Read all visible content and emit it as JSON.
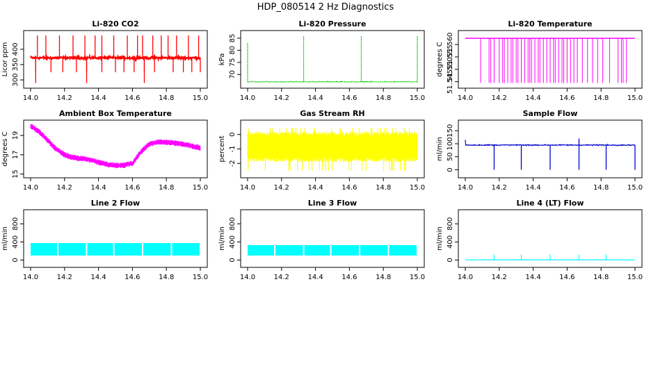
{
  "figure_title": "HDP_080514  2 Hz Diagnostics",
  "chart_data": [
    {
      "type": "line",
      "title": "Li-820 CO2",
      "ylabel": "Licor ppm",
      "color": "#ff0000",
      "xlim": [
        14.0,
        15.0
      ],
      "ylim": [
        282,
        452
      ],
      "x_ticks": [
        "14.0",
        "14.2",
        "14.4",
        "14.6",
        "14.8",
        "15.0"
      ],
      "y_ticks": [
        "300",
        "350",
        "400"
      ],
      "y_tick_values": [
        300,
        350,
        400
      ],
      "baseline": 372,
      "noise": 4,
      "spikes_up": [
        14.04,
        14.09,
        14.17,
        14.25,
        14.32,
        14.38,
        14.42,
        14.49,
        14.57,
        14.63,
        14.66,
        14.72,
        14.77,
        14.81,
        14.86,
        14.93,
        14.99
      ],
      "spike_up_value": 445,
      "spikes_down": [
        14.03,
        14.12,
        14.19,
        14.27,
        14.33,
        14.42,
        14.5,
        14.55,
        14.61,
        14.67,
        14.73,
        14.84,
        14.9,
        14.95,
        15.0
      ],
      "spike_down_value": 325,
      "deep_spikes": [
        14.03,
        14.33,
        14.67
      ],
      "deep_spike_value": 290
    },
    {
      "type": "line",
      "title": "Li-820 Pressure",
      "ylabel": "kPa",
      "color": "#00cc00",
      "xlim": [
        14.0,
        15.0
      ],
      "ylim": [
        65.5,
        87
      ],
      "x_ticks": [
        "14.0",
        "14.2",
        "14.4",
        "14.6",
        "14.8",
        "15.0"
      ],
      "y_ticks": [
        "70",
        "75",
        "80",
        "85"
      ],
      "y_tick_values": [
        70,
        75,
        80,
        85
      ],
      "baseline": 67.0,
      "noise": 0.15,
      "spikes_up": [
        14.0,
        14.33,
        14.67,
        15.0
      ],
      "spike_up_value": 86,
      "spike_first_value": 83
    },
    {
      "type": "line",
      "title": "Li-820 Temperature",
      "ylabel": "degrees C",
      "color": "#ff00ff",
      "xlim": [
        14.0,
        15.0
      ],
      "ylim": [
        51.5435,
        51.5645
      ],
      "x_ticks": [
        "14.0",
        "14.2",
        "14.4",
        "14.6",
        "14.8",
        "15.0"
      ],
      "y_ticks": [
        "51.545",
        "51.550",
        "51.555",
        "51.560"
      ],
      "y_tick_values": [
        51.545,
        51.55,
        51.555,
        51.56
      ],
      "high_value": 51.5625,
      "low_value": 51.5445,
      "drops": [
        14.09,
        14.14,
        14.15,
        14.17,
        14.2,
        14.22,
        14.23,
        14.25,
        14.27,
        14.28,
        14.3,
        14.31,
        14.33,
        14.35,
        14.37,
        14.38,
        14.39,
        14.41,
        14.43,
        14.44,
        14.46,
        14.48,
        14.5,
        14.52,
        14.53,
        14.55,
        14.57,
        14.58,
        14.6,
        14.62,
        14.64,
        14.66,
        14.69,
        14.72,
        14.75,
        14.78,
        14.81,
        14.85,
        14.9,
        14.92,
        14.93,
        14.95
      ]
    },
    {
      "type": "line",
      "title": "Ambient Box Temperature",
      "ylabel": "degrees C",
      "color": "#ff00ff",
      "xlim": [
        14.0,
        15.0
      ],
      "ylim": [
        14.9,
        20.3
      ],
      "x_ticks": [
        "14.0",
        "14.2",
        "14.4",
        "14.6",
        "14.8",
        "15.0"
      ],
      "y_ticks": [
        "15",
        "17",
        "19"
      ],
      "y_tick_values": [
        15,
        17,
        19
      ],
      "trend_x": [
        14.0,
        14.05,
        14.1,
        14.15,
        14.2,
        14.25,
        14.3,
        14.35,
        14.4,
        14.45,
        14.5,
        14.55,
        14.6,
        14.65,
        14.7,
        14.75,
        14.8,
        14.85,
        14.9,
        14.95,
        15.0
      ],
      "trend_y": [
        20.0,
        19.4,
        18.5,
        17.6,
        17.0,
        16.7,
        16.6,
        16.5,
        16.2,
        16.0,
        15.9,
        15.9,
        16.1,
        17.3,
        18.1,
        18.3,
        18.3,
        18.2,
        18.1,
        17.9,
        17.7
      ],
      "noise": 0.3
    },
    {
      "type": "line",
      "title": "Gas Stream RH",
      "ylabel": "percent",
      "color": "#ffff00",
      "xlim": [
        14.0,
        15.0
      ],
      "ylim": [
        -2.8,
        0.8
      ],
      "x_ticks": [
        "14.0",
        "14.2",
        "14.4",
        "14.6",
        "14.8",
        "15.0"
      ],
      "y_ticks": [
        "-2",
        "-1",
        "0"
      ],
      "y_tick_values": [
        -2,
        -1,
        0
      ],
      "center": -0.9,
      "band_low": -1.9,
      "band_high": 0.2,
      "extreme_low": -2.5,
      "extreme_high": 0.45
    },
    {
      "type": "line",
      "title": "Sample Flow",
      "ylabel": "ml/min",
      "color": "#0000cc",
      "xlim": [
        14.0,
        15.0
      ],
      "ylim": [
        -20,
        180
      ],
      "x_ticks": [
        "14.0",
        "14.2",
        "14.4",
        "14.6",
        "14.8",
        "15.0"
      ],
      "y_ticks": [
        "0",
        "50",
        "100",
        "150"
      ],
      "y_tick_values": [
        0,
        50,
        100,
        150
      ],
      "baseline": 95,
      "noise": 2,
      "dips": [
        14.17,
        14.33,
        14.5,
        14.67,
        14.83,
        15.0
      ],
      "dip_value": 0,
      "start_value": 115,
      "peak_x": 14.67,
      "peak_value": 120
    },
    {
      "type": "area",
      "title": "Line 2 Flow",
      "ylabel": "ml/min",
      "color": "#00ffff",
      "xlim": [
        14.0,
        15.0
      ],
      "ylim": [
        -100,
        1050
      ],
      "x_ticks": [
        "14.0",
        "14.2",
        "14.4",
        "14.6",
        "14.8",
        "15.0"
      ],
      "y_ticks": [
        "0",
        "400",
        "800"
      ],
      "y_tick_values": [
        0,
        400,
        800
      ],
      "start": 14.0,
      "band_low": 100,
      "band_high": 375,
      "gaps": [
        14.16,
        14.33,
        14.49,
        14.66,
        14.83
      ]
    },
    {
      "type": "area",
      "title": "Line 3 Flow",
      "ylabel": "ml/min",
      "color": "#00ffff",
      "xlim": [
        14.0,
        15.0
      ],
      "ylim": [
        -100,
        1050
      ],
      "x_ticks": [
        "14.0",
        "14.2",
        "14.4",
        "14.6",
        "14.8",
        "15.0"
      ],
      "y_ticks": [
        "0",
        "400",
        "800"
      ],
      "y_tick_values": [
        0,
        400,
        800
      ],
      "start": 14.0,
      "band_low": 100,
      "band_high": 330,
      "gaps": [
        14.16,
        14.33,
        14.49,
        14.66,
        14.83
      ]
    },
    {
      "type": "line",
      "title": "Line 4 (LT) Flow",
      "ylabel": "ml/min",
      "color": "#00ffff",
      "xlim": [
        14.0,
        15.0
      ],
      "ylim": [
        -100,
        1050
      ],
      "x_ticks": [
        "14.0",
        "14.2",
        "14.4",
        "14.6",
        "14.8",
        "15.0"
      ],
      "y_ticks": [
        "0",
        "400",
        "800"
      ],
      "y_tick_values": [
        0,
        400,
        800
      ],
      "baseline": 5,
      "spikes_up": [
        14.17,
        14.33,
        14.5,
        14.67,
        14.83
      ],
      "spike_up_value": 120
    }
  ]
}
